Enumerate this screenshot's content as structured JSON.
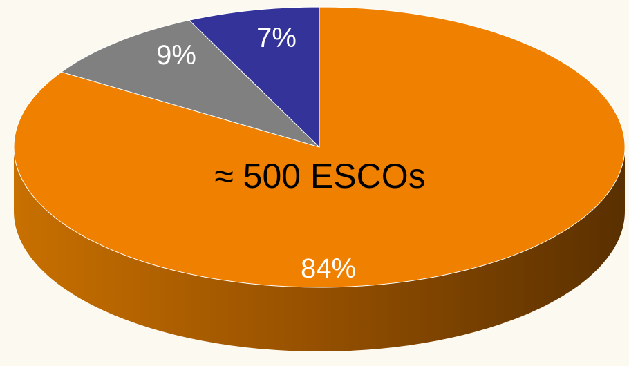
{
  "chart_data": {
    "type": "pie",
    "style": "3d-tilted",
    "slices": [
      {
        "label": "84%",
        "value": 84,
        "color": "#f08000",
        "side_dark": "#5a3000",
        "side_light": "#c87000",
        "label_color": "#ffffff"
      },
      {
        "label": "9%",
        "value": 9,
        "color": "#808080",
        "side_dark": "#4a4a4a",
        "side_light": "#6e6e6e",
        "label_color": "#ffffff"
      },
      {
        "label": "7%",
        "value": 7,
        "color": "#333399",
        "side_dark": "#1e1e5a",
        "side_light": "#2a2a7a",
        "label_color": "#ffffff"
      }
    ],
    "annotation": "≈ 500 ESCOs",
    "annotation_color": "#000000",
    "background": "#fcf9f0"
  }
}
